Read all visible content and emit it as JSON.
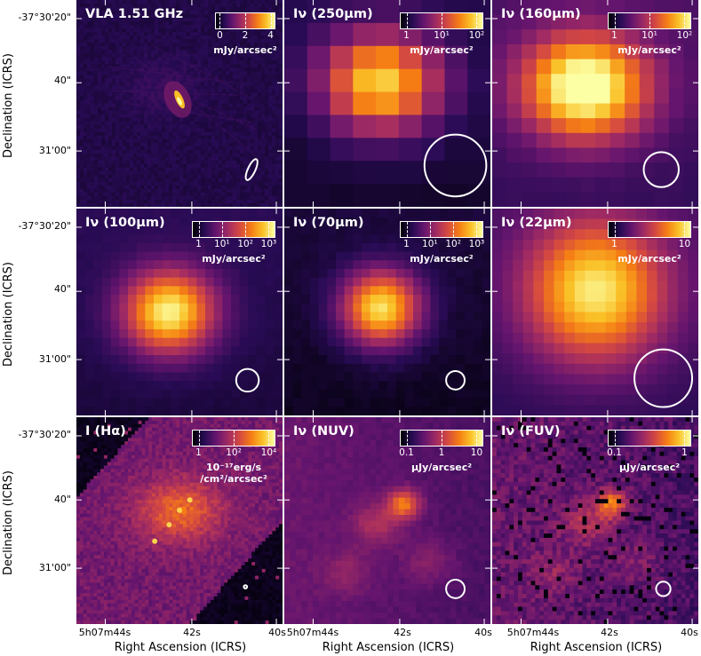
{
  "figure": {
    "y_axis_title": "Declination (ICRS)",
    "x_axis_title": "Right Ascension (ICRS)",
    "y_ticks": [
      "-37°30'20\"",
      "40\"",
      "31'00\""
    ],
    "x_ticks": [
      "5h07m44s",
      "42s",
      "40s"
    ]
  },
  "panels": [
    {
      "title": "VLA 1.51 GHz",
      "colorbar_ticks": [
        "0",
        "2",
        "4"
      ],
      "unit_lines": [
        "mJy/arcsec²"
      ]
    },
    {
      "title": "Iν (250μm)",
      "colorbar_ticks": [
        "1",
        "10¹",
        "10²"
      ],
      "unit_lines": [
        "mJy/arcsec²"
      ]
    },
    {
      "title": "Iν (160μm)",
      "colorbar_ticks": [
        "1",
        "10¹",
        "10²"
      ],
      "unit_lines": [
        "mJy/arcsec²"
      ]
    },
    {
      "title": "Iν (100μm)",
      "colorbar_ticks": [
        "1",
        "10¹",
        "10²",
        "10³"
      ],
      "unit_lines": [
        "mJy/arcsec²"
      ]
    },
    {
      "title": "Iν (70μm)",
      "colorbar_ticks": [
        "1",
        "10¹",
        "10²",
        "10³"
      ],
      "unit_lines": [
        "mJy/arcsec²"
      ]
    },
    {
      "title": "Iν (22μm)",
      "colorbar_ticks": [
        "1",
        "10"
      ],
      "unit_lines": [
        "mJy/arcsec²"
      ]
    },
    {
      "title": "I (Hα)",
      "colorbar_ticks": [
        "1",
        "10²",
        "10⁴"
      ],
      "unit_lines": [
        "10⁻¹⁷erg/s",
        "/cm²/arcsec²"
      ]
    },
    {
      "title": "Iν (NUV)",
      "colorbar_ticks": [
        "0.1",
        "1",
        "10"
      ],
      "unit_lines": [
        "μJy/arcsec²"
      ]
    },
    {
      "title": "Iν (FUV)",
      "colorbar_ticks": [
        "0.1",
        "1"
      ],
      "unit_lines": [
        "μJy/arcsec²"
      ]
    }
  ],
  "colors": {
    "cmap": [
      "#000004",
      "#280b54",
      "#65156e",
      "#9f2a63",
      "#d44842",
      "#f57d15",
      "#fac127",
      "#fcffa4"
    ],
    "beam": "#ffffff"
  }
}
